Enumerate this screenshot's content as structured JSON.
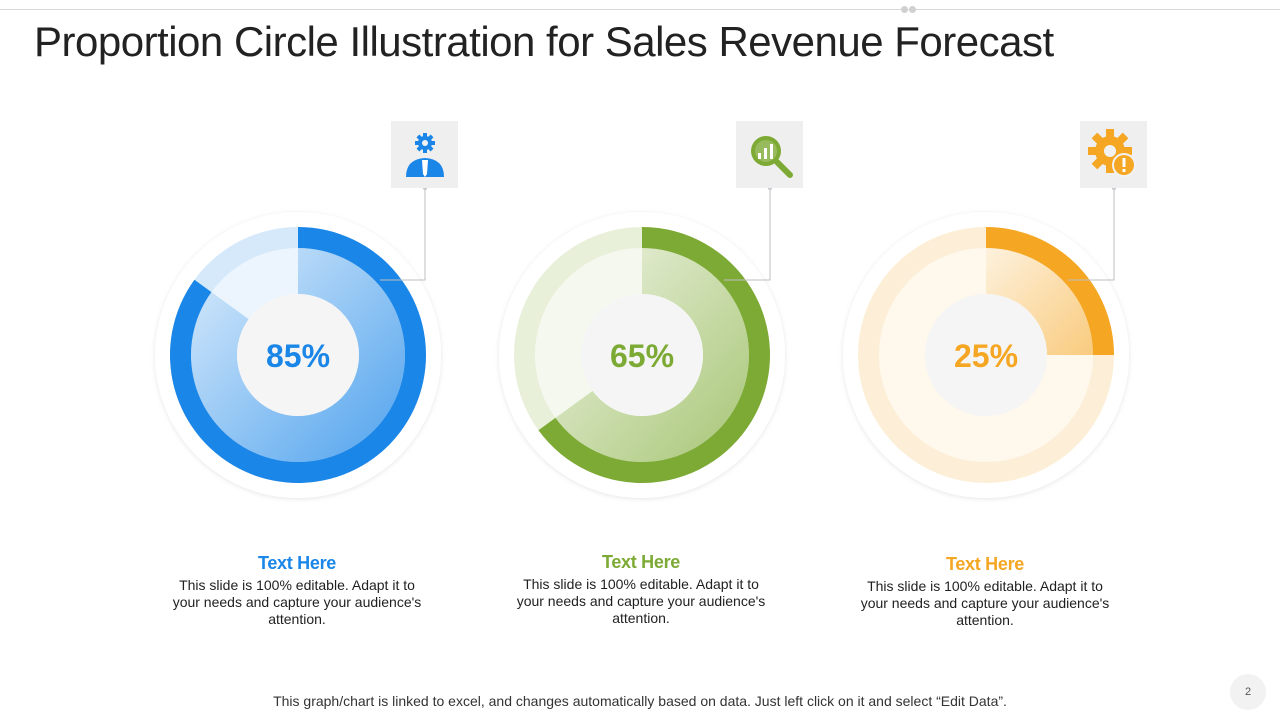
{
  "title": "Proportion Circle Illustration for Sales Revenue Forecast",
  "chart_data": {
    "type": "pie",
    "items": [
      {
        "value": 85,
        "label": "85%",
        "heading": "Text Here",
        "description": "This slide is 100% editable. Adapt it to your needs and capture your audience's attention.",
        "color": "#1A86E8",
        "icon": "business-person-gear-icon"
      },
      {
        "value": 65,
        "label": "65%",
        "heading": "Text Here",
        "description": "This slide is 100% editable. Adapt it to your needs and capture your audience's attention.",
        "color": "#7DAA34",
        "icon": "search-analytics-icon"
      },
      {
        "value": 25,
        "label": "25%",
        "heading": "Text Here",
        "description": "This slide is 100% editable. Adapt it to your needs and capture your audience's attention.",
        "color": "#F5A623",
        "icon": "gear-warning-icon"
      }
    ]
  },
  "footer_note": "This graph/chart is linked to excel, and changes automatically based on data. Just left click on it and select “Edit Data”.",
  "page_number": "2"
}
